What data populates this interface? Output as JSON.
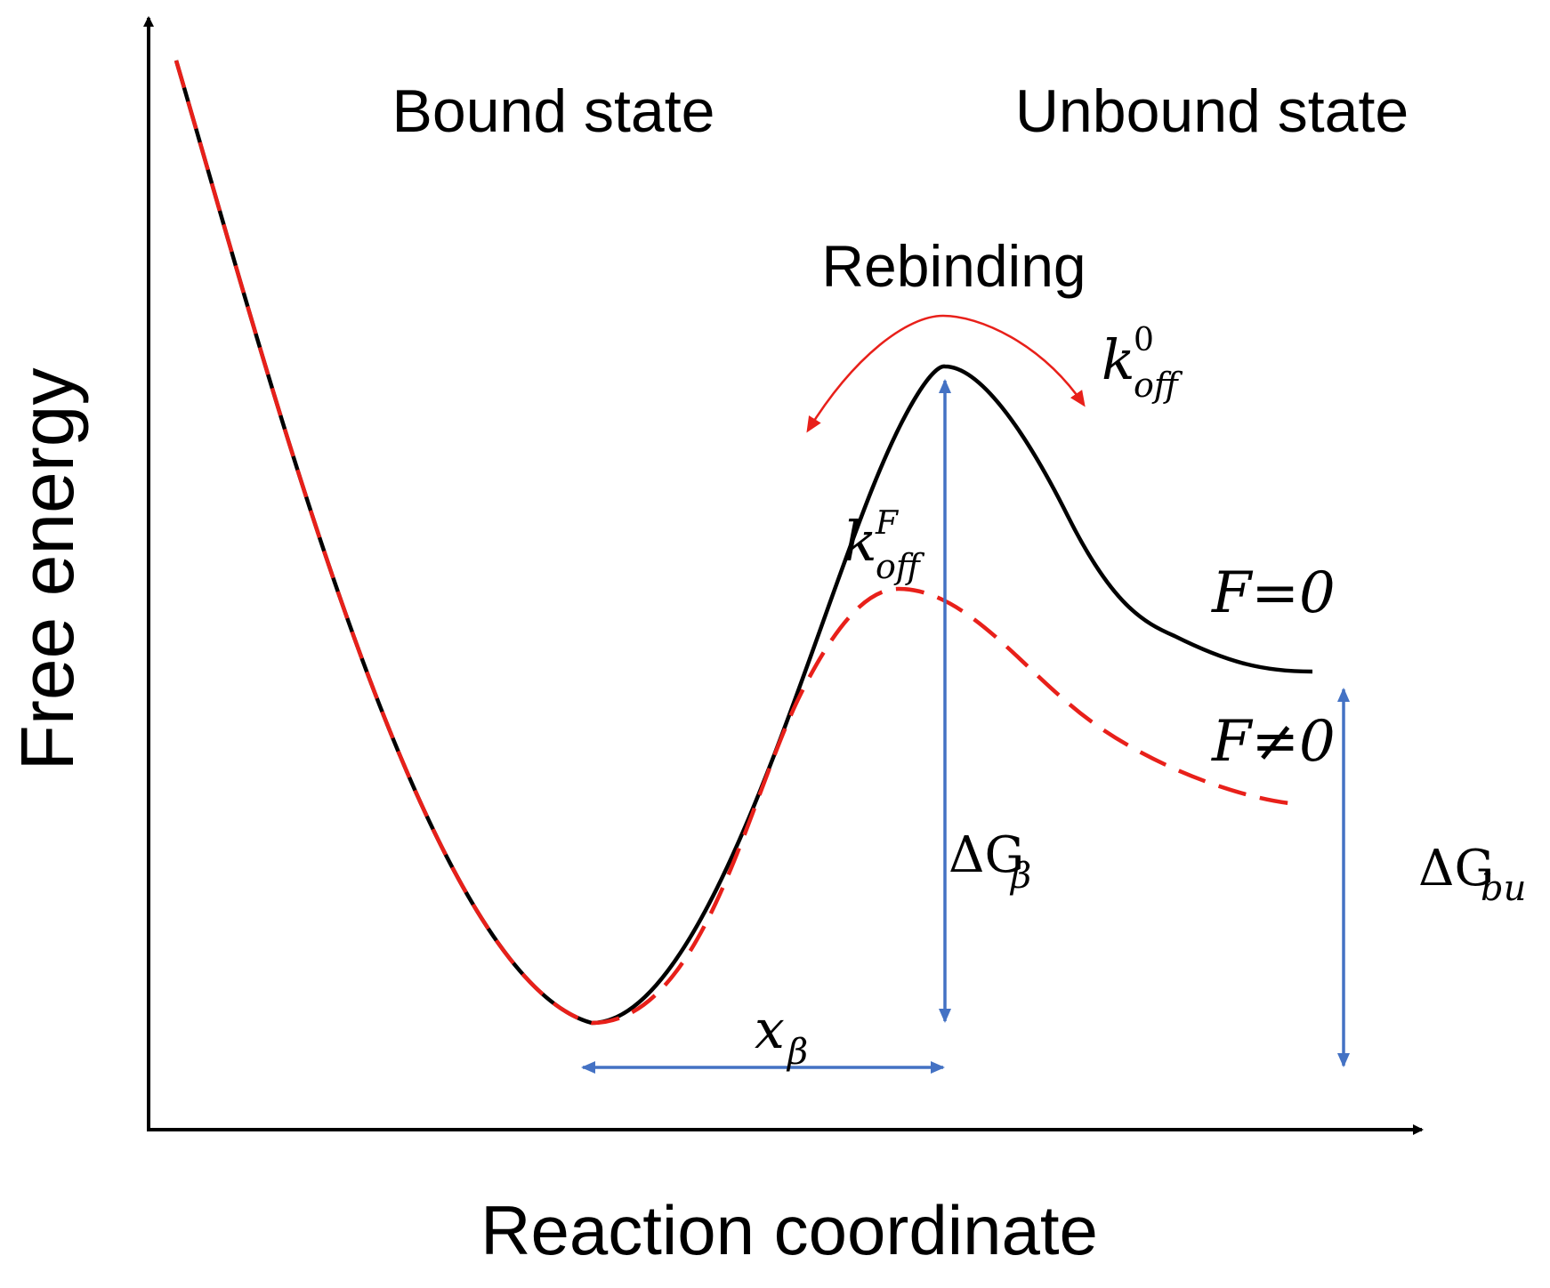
{
  "axes": {
    "y_label": "Free energy",
    "x_label": "Reaction coordinate"
  },
  "states": {
    "bound": "Bound state",
    "unbound": "Unbound state"
  },
  "annotations": {
    "rebinding": "Rebinding",
    "k_off_zero": {
      "base": "k",
      "sup": "0",
      "sub": "off"
    },
    "k_off_force": {
      "base": "k",
      "sup": "F",
      "sub": "off"
    },
    "curve_f_zero": "F=0",
    "curve_f_nonzero": "F≠0",
    "delta_g_beta": {
      "base": "ΔG",
      "sub": "β"
    },
    "delta_g_bu": {
      "base": "ΔG",
      "sub": "bu"
    },
    "x_beta": {
      "base": "x",
      "sub": "β"
    }
  },
  "colors": {
    "axis": "#000000",
    "curve_f_zero": "#000000",
    "curve_f_nonzero": "#e8201a",
    "rebinding_arrow": "#e8201a",
    "measure_arrows": "#4472c4"
  }
}
